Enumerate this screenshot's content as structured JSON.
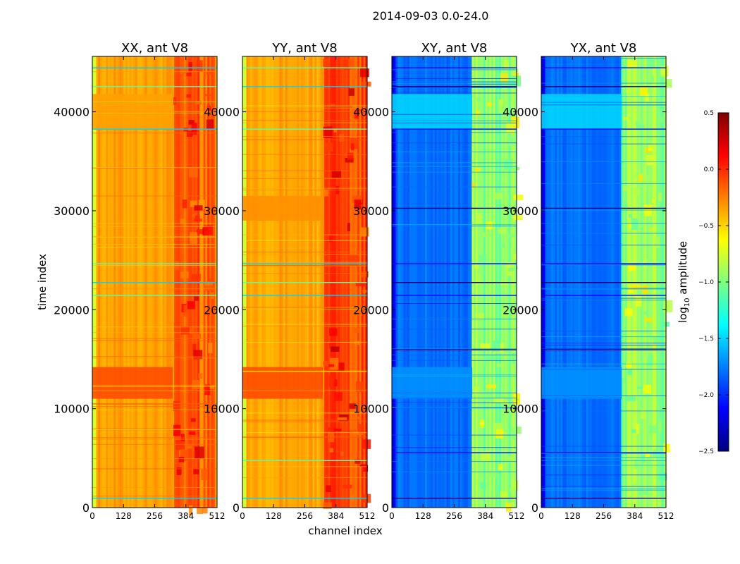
{
  "figure": {
    "suptitle": "2014-09-03 0.0-24.0"
  },
  "colors": {
    "jet": [
      "#00007f",
      "#0000ff",
      "#007fff",
      "#00ffff",
      "#7fff7f",
      "#ffff00",
      "#ff7f00",
      "#ff0000",
      "#7f0000"
    ]
  },
  "chart_data": [
    {
      "type": "heatmap",
      "title": "XX, ant V8",
      "xlabel": "",
      "ylabel": "time index",
      "xlim": [
        0,
        512
      ],
      "ylim": [
        0,
        45600
      ],
      "xticks": [
        "0",
        "128",
        "256",
        "384",
        "512"
      ],
      "yticks": [
        "0",
        "10000",
        "20000",
        "30000",
        "40000"
      ],
      "base_level": -0.35,
      "bands": [
        {
          "from": 11000,
          "to": 14200,
          "level": -0.1
        },
        {
          "from": 38300,
          "to": 41800,
          "level": -0.35
        }
      ],
      "rfi_channels": [
        [
          330,
          500,
          -0.15
        ]
      ],
      "flag_rows": [
        1000,
        21500,
        22800,
        24700,
        38300,
        42600,
        44500
      ],
      "flag_level": -1.4
    },
    {
      "type": "heatmap",
      "title": "YY, ant V8",
      "xlabel": "channel index",
      "ylabel": "",
      "xlim": [
        0,
        512
      ],
      "ylim": [
        0,
        45600
      ],
      "xticks": [
        "0",
        "128",
        "256",
        "384",
        "512"
      ],
      "yticks": [
        "0",
        "10000",
        "20000",
        "30000",
        "40000"
      ],
      "base_level": -0.35,
      "bands": [
        {
          "from": 11000,
          "to": 14200,
          "level": -0.1
        },
        {
          "from": 29000,
          "to": 31500,
          "level": -0.3
        }
      ],
      "rfi_channels": [
        [
          330,
          512,
          -0.1
        ]
      ],
      "flag_rows": [
        1000,
        4800,
        21500,
        22800,
        24700,
        38300,
        42600,
        44500
      ],
      "flag_level": -1.4
    },
    {
      "type": "heatmap",
      "title": "XY, ant V8",
      "xlabel": "",
      "ylabel": "",
      "xlim": [
        0,
        512
      ],
      "ylim": [
        0,
        45600
      ],
      "xticks": [
        "0",
        "128",
        "256",
        "384",
        "512"
      ],
      "yticks": [
        "0",
        "10000",
        "20000",
        "30000",
        "40000"
      ],
      "base_level": -1.8,
      "bands": [
        {
          "from": 38300,
          "to": 41800,
          "level": -1.5
        },
        {
          "from": 11000,
          "to": 14200,
          "level": -1.7
        }
      ],
      "rfi_channels": [
        [
          325,
          515,
          -0.95
        ]
      ],
      "flag_rows": [
        1000,
        5600,
        16000,
        21500,
        22800,
        24700,
        30300,
        38300,
        42600,
        44500
      ],
      "flag_level": -2.4
    },
    {
      "type": "heatmap",
      "title": "YX, ant V8",
      "xlabel": "",
      "ylabel": "",
      "xlim": [
        0,
        512
      ],
      "ylim": [
        0,
        45600
      ],
      "xticks": [
        "0",
        "128",
        "256",
        "384",
        "512"
      ],
      "yticks": [
        "0",
        "10000",
        "20000",
        "30000",
        "40000"
      ],
      "base_level": -1.8,
      "bands": [
        {
          "from": 38300,
          "to": 41800,
          "level": -1.5
        },
        {
          "from": 11000,
          "to": 14200,
          "level": -1.7
        }
      ],
      "rfi_channels": [
        [
          325,
          515,
          -0.95
        ]
      ],
      "flag_rows": [
        1000,
        5600,
        16000,
        21500,
        22800,
        24700,
        30300,
        38300,
        42600,
        44500
      ],
      "flag_level": -2.4
    }
  ],
  "colorbar": {
    "label_prefix": "log",
    "label_sub": "10",
    "label_suffix": " amplitude",
    "min": -2.5,
    "max": 0.5,
    "ticks": [
      {
        "value": 0.5,
        "label": "0.5"
      },
      {
        "value": 0.0,
        "label": "0.0"
      },
      {
        "value": -0.5,
        "label": "−0.5"
      },
      {
        "value": -1.0,
        "label": "−1.0"
      },
      {
        "value": -1.5,
        "label": "−1.5"
      },
      {
        "value": -2.0,
        "label": "−2.0"
      },
      {
        "value": -2.5,
        "label": "−2.5"
      }
    ]
  }
}
